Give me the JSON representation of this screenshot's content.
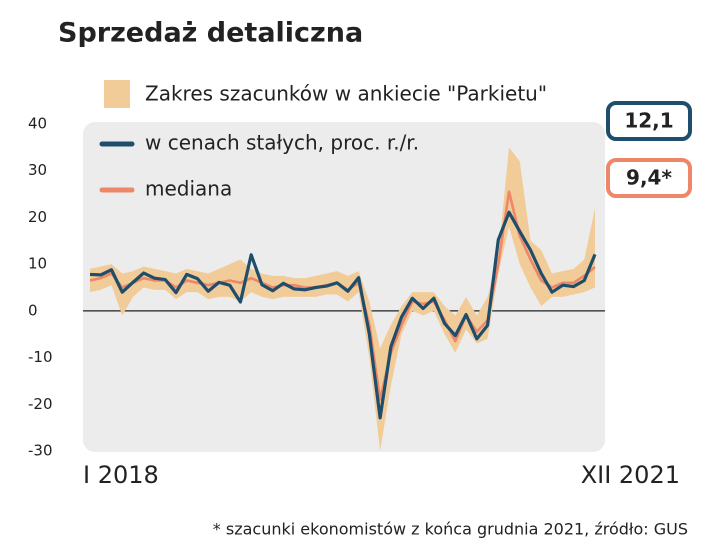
{
  "chart_data": {
    "type": "line",
    "title": "Sprzedaż detaliczna",
    "footnote": "* szacunki ekonomistów z końca grudnia 2021, źródło: GUS",
    "categories": [
      "I 2018",
      null,
      null,
      null,
      null,
      null,
      null,
      null,
      null,
      null,
      null,
      null,
      null,
      null,
      null,
      null,
      null,
      null,
      null,
      null,
      null,
      null,
      null,
      null,
      null,
      null,
      null,
      null,
      null,
      null,
      null,
      null,
      null,
      null,
      null,
      null,
      null,
      null,
      null,
      null,
      null,
      null,
      null,
      null,
      null,
      null,
      null,
      "XII 2021"
    ],
    "ylim": [
      -30,
      40
    ],
    "yticks": [
      40,
      30,
      20,
      10,
      0,
      -10,
      -20,
      -30
    ],
    "band": {
      "name": "Zakres szacunków w ankiecie \"Parkietu\"",
      "color": "#f2cc98",
      "high": [
        9,
        9.5,
        10,
        8,
        8.5,
        9.5,
        9,
        8.5,
        8,
        9,
        8.5,
        8,
        9,
        10,
        11,
        9,
        8,
        7.5,
        7.5,
        7,
        7,
        7.5,
        8,
        8.5,
        7.5,
        8.5,
        2,
        -8,
        -3,
        1,
        4,
        4,
        4,
        1,
        -1,
        3,
        -1,
        3,
        12,
        35,
        32,
        15,
        13,
        8,
        8.5,
        9,
        11,
        22
      ],
      "low": [
        4,
        4.5,
        5.5,
        -1,
        3,
        5,
        4.5,
        4.5,
        2.5,
        4,
        4,
        2.5,
        3,
        3,
        2,
        4,
        3,
        2.5,
        3,
        3,
        3,
        3,
        3.5,
        3.5,
        2,
        4,
        -10,
        -30,
        -16,
        -5,
        0,
        -1,
        0,
        -5,
        -9,
        -4,
        -7,
        -6,
        8,
        18,
        10,
        5,
        1,
        3,
        3,
        3.5,
        4,
        5
      ]
    },
    "series": [
      {
        "name": "w cenach stałych, proc. r./r.",
        "color": "#1e4e6c",
        "end_label": "12,1",
        "values": [
          7.8,
          7.7,
          8.8,
          4.0,
          6.1,
          8.1,
          7.0,
          6.7,
          3.9,
          7.8,
          6.9,
          4.2,
          6.1,
          5.5,
          1.9,
          12.0,
          5.6,
          4.3,
          5.9,
          4.7,
          4.5,
          5.0,
          5.3,
          6.0,
          4.2,
          7.1,
          -5,
          -22.9,
          -7.7,
          -1.3,
          2.7,
          0.5,
          2.7,
          -2.7,
          -5.3,
          -0.8,
          -6.0,
          -3.1,
          15.2,
          21.1,
          17,
          13,
          8,
          4,
          5.5,
          5.2,
          6.5,
          12.1
        ]
      },
      {
        "name": "mediana",
        "color": "#ee8668",
        "end_label": "9,4*",
        "values": [
          6.5,
          7,
          8,
          5,
          6,
          7,
          6.5,
          6.5,
          5,
          6.5,
          6,
          5.5,
          6,
          6.5,
          6,
          7,
          6,
          5,
          5.5,
          5.5,
          5,
          5,
          5.5,
          6,
          4.5,
          6,
          -3,
          -19,
          -9,
          -3,
          2,
          1.5,
          2,
          -2,
          -6.5,
          -1,
          -4.5,
          -2,
          10,
          25.5,
          16,
          11,
          6.5,
          5,
          6,
          6,
          7.5,
          9.4
        ]
      }
    ]
  }
}
